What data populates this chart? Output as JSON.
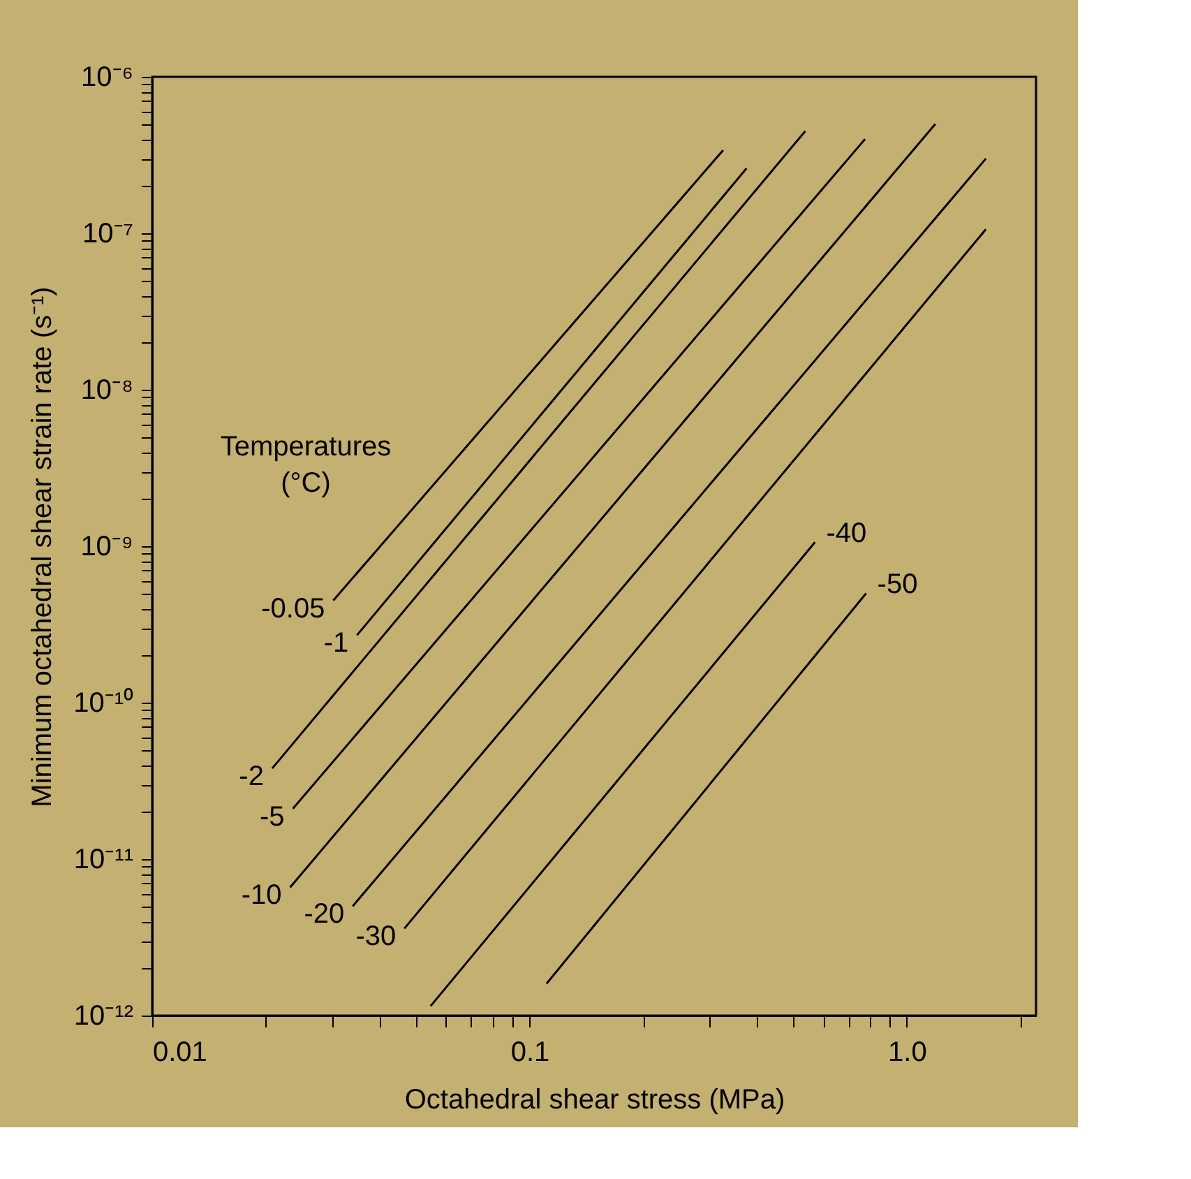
{
  "chart_data": {
    "type": "line",
    "xlabel": "Octahedral shear stress (MPa)",
    "ylabel": "Minimum octahedral shear strain rate (s⁻¹)",
    "legend_title": "Temperatures (°C)",
    "log": "xy",
    "grid": false,
    "marker": "none",
    "line_style": "solid",
    "xlim": [
      0.01,
      2.2
    ],
    "ylim": [
      1e-12,
      1e-06
    ],
    "xticks": [
      0.01,
      {
        "value": 0.02,
        "label": null
      },
      {
        "value": 0.03,
        "label": null
      },
      {
        "value": 0.04,
        "label": null
      },
      {
        "value": 0.05,
        "label": null
      },
      {
        "value": 0.06,
        "label": null
      },
      {
        "value": 0.07,
        "label": null
      },
      {
        "value": 0.08,
        "label": null
      },
      {
        "value": 0.09,
        "label": null
      },
      0.1,
      {
        "value": 0.2,
        "label": null
      },
      {
        "value": 0.3,
        "label": null
      },
      {
        "value": 0.4,
        "label": null
      },
      {
        "value": 0.5,
        "label": null
      },
      {
        "value": 0.6,
        "label": null
      },
      {
        "value": 0.7,
        "label": null
      },
      {
        "value": 0.8,
        "label": null
      },
      {
        "value": 0.9,
        "label": null
      },
      {
        "value": 1,
        "label": "1.0"
      },
      {
        "value": 2,
        "label": null
      }
    ],
    "yticks": [
      {
        "value": 1e-12,
        "label": "10⁻¹²"
      },
      {
        "value": 2e-12,
        "label": null
      },
      {
        "value": 3e-12,
        "label": null
      },
      {
        "value": 4e-12,
        "label": null
      },
      {
        "value": 5e-12,
        "label": null
      },
      {
        "value": 6e-12,
        "label": null
      },
      {
        "value": 7e-12,
        "label": null
      },
      {
        "value": 8e-12,
        "label": null
      },
      {
        "value": 9e-12,
        "label": null
      },
      {
        "value": 1e-11,
        "label": "10⁻¹¹"
      },
      {
        "value": 2e-11,
        "label": null
      },
      {
        "value": 3e-11,
        "label": null
      },
      {
        "value": 4e-11,
        "label": null
      },
      {
        "value": 5e-11,
        "label": null
      },
      {
        "value": 6e-11,
        "label": null
      },
      {
        "value": 7e-11,
        "label": null
      },
      {
        "value": 8e-11,
        "label": null
      },
      {
        "value": 9e-11,
        "label": null
      },
      {
        "value": 1e-10,
        "label": "10⁻¹⁰"
      },
      {
        "value": 2e-10,
        "label": null
      },
      {
        "value": 3e-10,
        "label": null
      },
      {
        "value": 4e-10,
        "label": null
      },
      {
        "value": 5e-10,
        "label": null
      },
      {
        "value": 6e-10,
        "label": null
      },
      {
        "value": 7e-10,
        "label": null
      },
      {
        "value": 8e-10,
        "label": null
      },
      {
        "value": 9e-10,
        "label": null
      },
      {
        "value": 1e-09,
        "label": "10⁻⁹"
      },
      {
        "value": 2e-09,
        "label": null
      },
      {
        "value": 3e-09,
        "label": null
      },
      {
        "value": 4e-09,
        "label": null
      },
      {
        "value": 5e-09,
        "label": null
      },
      {
        "value": 6e-09,
        "label": null
      },
      {
        "value": 7e-09,
        "label": null
      },
      {
        "value": 8e-09,
        "label": null
      },
      {
        "value": 9e-09,
        "label": null
      },
      {
        "value": 1e-08,
        "label": "10⁻⁸"
      },
      {
        "value": 2e-08,
        "label": null
      },
      {
        "value": 3e-08,
        "label": null
      },
      {
        "value": 4e-08,
        "label": null
      },
      {
        "value": 5e-08,
        "label": null
      },
      {
        "value": 6e-08,
        "label": null
      },
      {
        "value": 7e-08,
        "label": null
      },
      {
        "value": 8e-08,
        "label": null
      },
      {
        "value": 9e-08,
        "label": null
      },
      {
        "value": 1e-07,
        "label": "10⁻⁷"
      },
      {
        "value": 2e-07,
        "label": null
      },
      {
        "value": 3e-07,
        "label": null
      },
      {
        "value": 4e-07,
        "label": null
      },
      {
        "value": 5e-07,
        "label": null
      },
      {
        "value": 6e-07,
        "label": null
      },
      {
        "value": 7e-07,
        "label": null
      },
      {
        "value": 8e-07,
        "label": null
      },
      {
        "value": 9e-07,
        "label": null
      },
      {
        "value": 1e-06,
        "label": "10⁻⁶"
      }
    ],
    "series": [
      {
        "name": "-0.05",
        "color": "#000000",
        "x": [
          0.0302,
          0.326
        ],
        "values": [
          4.5e-10,
          3.4e-07
        ]
      },
      {
        "name": "-1",
        "color": "#000000",
        "x": [
          0.0349,
          0.376
        ],
        "values": [
          2.7e-10,
          2.6e-07
        ]
      },
      {
        "name": "-2",
        "color": "#000000",
        "x": [
          0.0208,
          0.538
        ],
        "values": [
          3.8e-11,
          4.5e-07
        ]
      },
      {
        "name": "-5",
        "color": "#000000",
        "x": [
          0.0236,
          0.775
        ],
        "values": [
          2.1e-11,
          4e-07
        ]
      },
      {
        "name": "-10",
        "color": "#000000",
        "x": [
          0.0232,
          1.19
        ],
        "values": [
          6.6e-12,
          5e-07
        ]
      },
      {
        "name": "-20",
        "color": "#000000",
        "x": [
          0.034,
          1.62
        ],
        "values": [
          5e-12,
          3e-07
        ]
      },
      {
        "name": "-30",
        "color": "#000000",
        "x": [
          0.0466,
          1.62
        ],
        "values": [
          3.6e-12,
          1.06e-07
        ]
      },
      {
        "name": "-40",
        "color": "#000000",
        "x": [
          0.0547,
          0.571
        ],
        "values": [
          1.15e-12,
          1.06e-09
        ]
      },
      {
        "name": "-50",
        "color": "#000000",
        "x": [
          0.111,
          0.78
        ],
        "values": [
          1.6e-12,
          5e-10
        ]
      }
    ]
  }
}
